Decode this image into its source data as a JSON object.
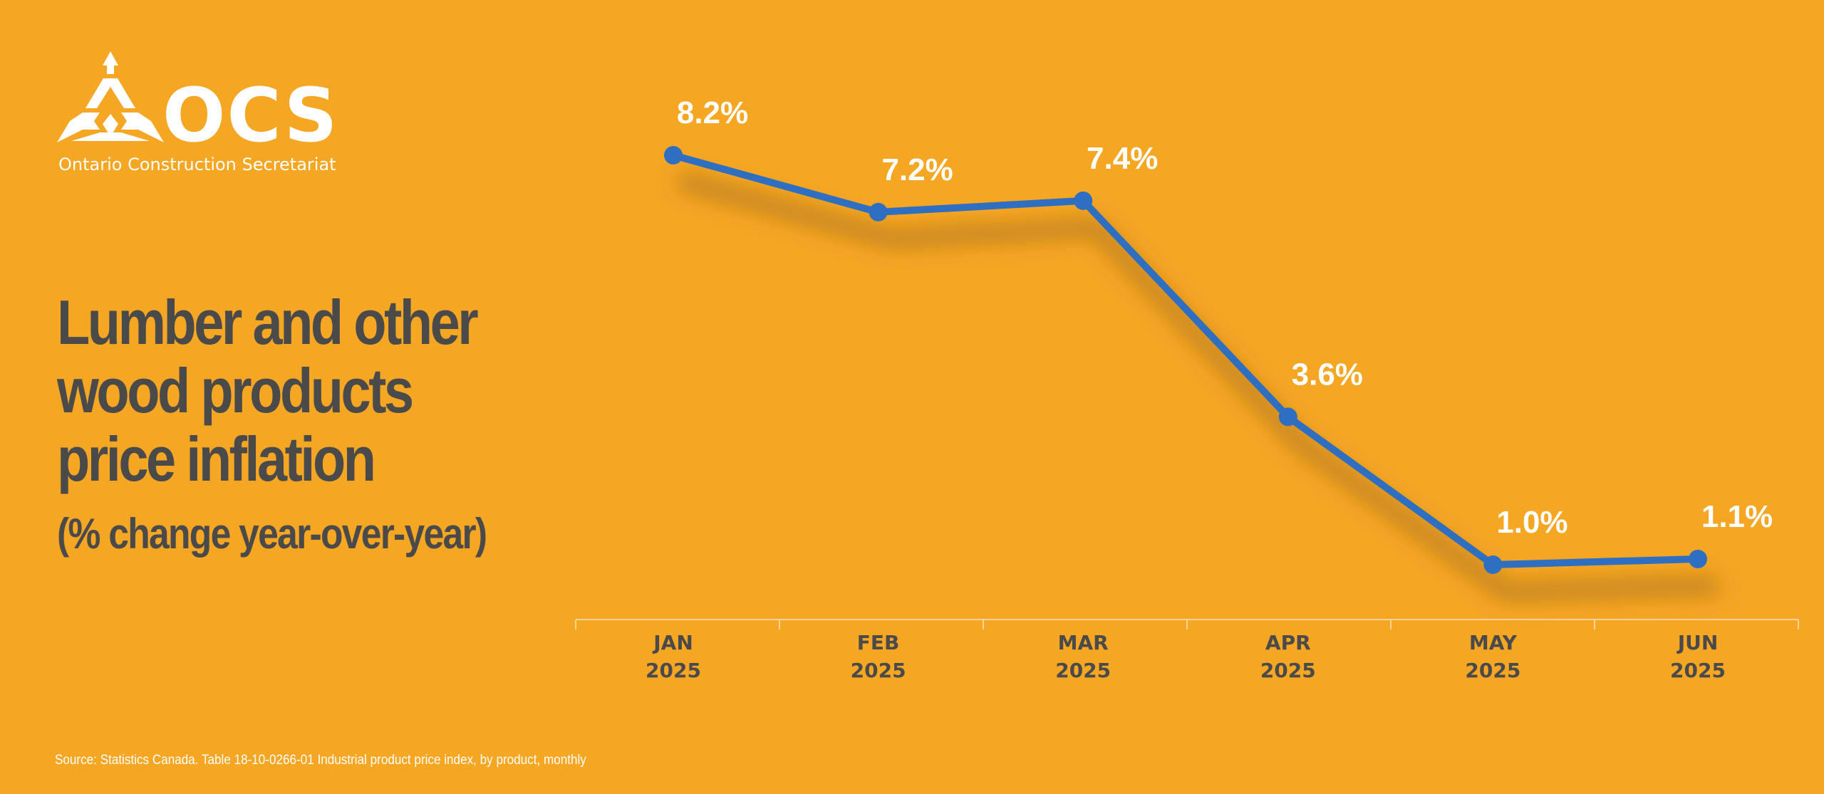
{
  "brand": {
    "name": "OCS",
    "subtitle": "Ontario Construction Secretariat"
  },
  "title_lines": [
    "Lumber and other",
    "wood products",
    "price inflation"
  ],
  "subtitle": "(% change year-over-year)",
  "source": "Source: Statistics Canada. Table 18-10-0266-01  Industrial product price index, by product, monthly",
  "colors": {
    "background": "#F5A623",
    "line": "#2F6FC1",
    "label": "#FFFFFF",
    "text": "#4A4A4A"
  },
  "chart_data": {
    "type": "line",
    "title": "Lumber and other wood products price inflation",
    "subtitle": "(% change year-over-year)",
    "categories": [
      [
        "JAN",
        "2025"
      ],
      [
        "FEB",
        "2025"
      ],
      [
        "MAR",
        "2025"
      ],
      [
        "APR",
        "2025"
      ],
      [
        "MAY",
        "2025"
      ],
      [
        "JUN",
        "2025"
      ]
    ],
    "values": [
      8.2,
      7.2,
      7.4,
      3.6,
      1.0,
      1.1
    ],
    "data_labels": [
      "8.2%",
      "7.2%",
      "7.4%",
      "3.6%",
      "1.0%",
      "1.1%"
    ],
    "ylim": [
      0,
      8.2
    ],
    "grid": false,
    "legend": "none"
  }
}
